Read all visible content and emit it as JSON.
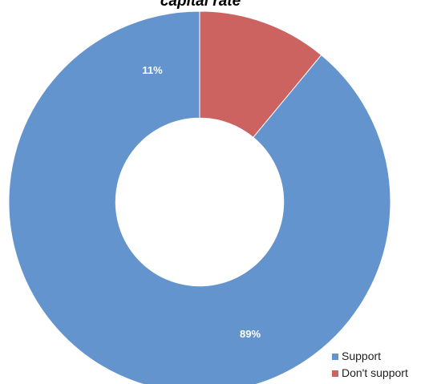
{
  "chart_data": {
    "type": "pie",
    "title": "capital rate",
    "categories": [
      "Support",
      "Don't support"
    ],
    "values": [
      89,
      11
    ],
    "labels": [
      "89%",
      "11%"
    ],
    "colors": [
      "#6494cd",
      "#cd6361"
    ],
    "hole": 0.44,
    "start_angle_deg": 0,
    "direction": "counterclockwise",
    "legend": {
      "position": "bottom-right",
      "entries": [
        "Support",
        "Don't support"
      ]
    }
  }
}
